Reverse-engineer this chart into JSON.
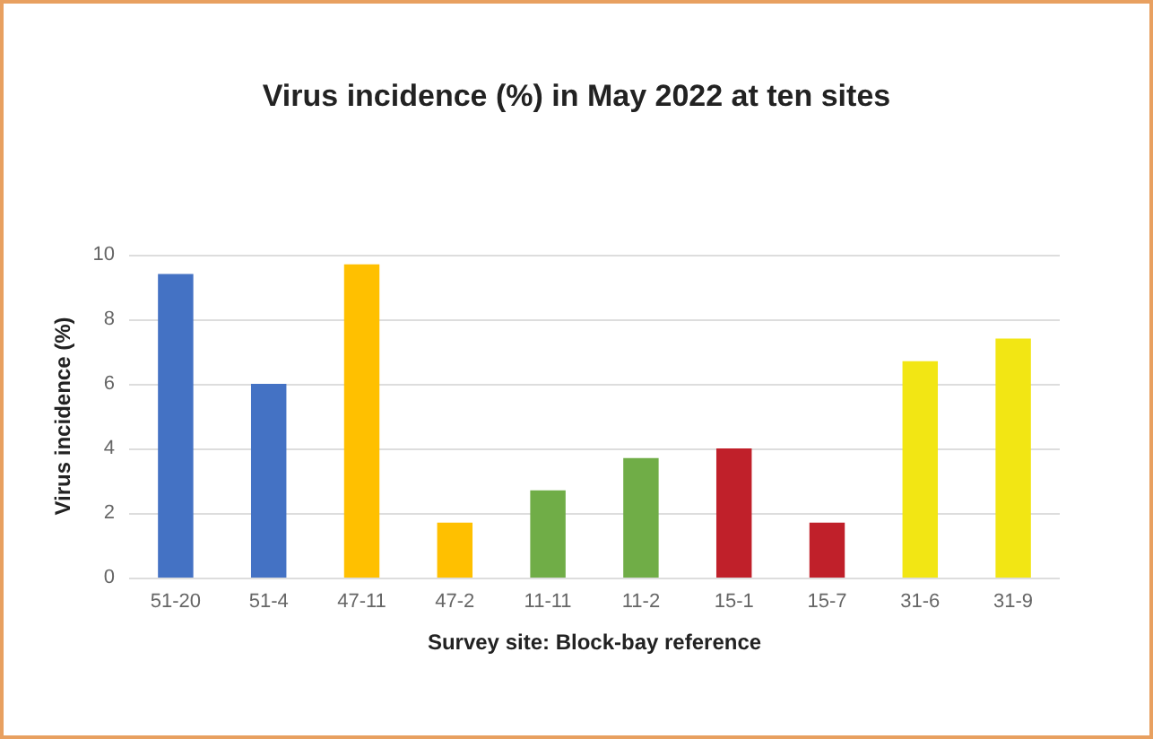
{
  "chart_data": {
    "type": "bar",
    "title": "Virus incidence (%) in May 2022 at ten sites",
    "xlabel": "Survey site: Block-bay reference",
    "ylabel": "Virus incidence (%)",
    "categories": [
      "51-20",
      "51-4",
      "47-11",
      "47-2",
      "11-11",
      "11-2",
      "15-1",
      "15-7",
      "31-6",
      "31-9"
    ],
    "values": [
      9.4,
      6.0,
      9.7,
      1.7,
      2.7,
      3.7,
      4.0,
      1.7,
      6.7,
      7.4
    ],
    "colors": [
      "#4472c4",
      "#4472c4",
      "#ffc000",
      "#ffc000",
      "#70ad47",
      "#70ad47",
      "#c0202a",
      "#c0202a",
      "#f2e614",
      "#f2e614"
    ],
    "ylim": [
      0,
      10
    ],
    "yticks": [
      0,
      2,
      4,
      6,
      8,
      10
    ],
    "grid": "y"
  }
}
